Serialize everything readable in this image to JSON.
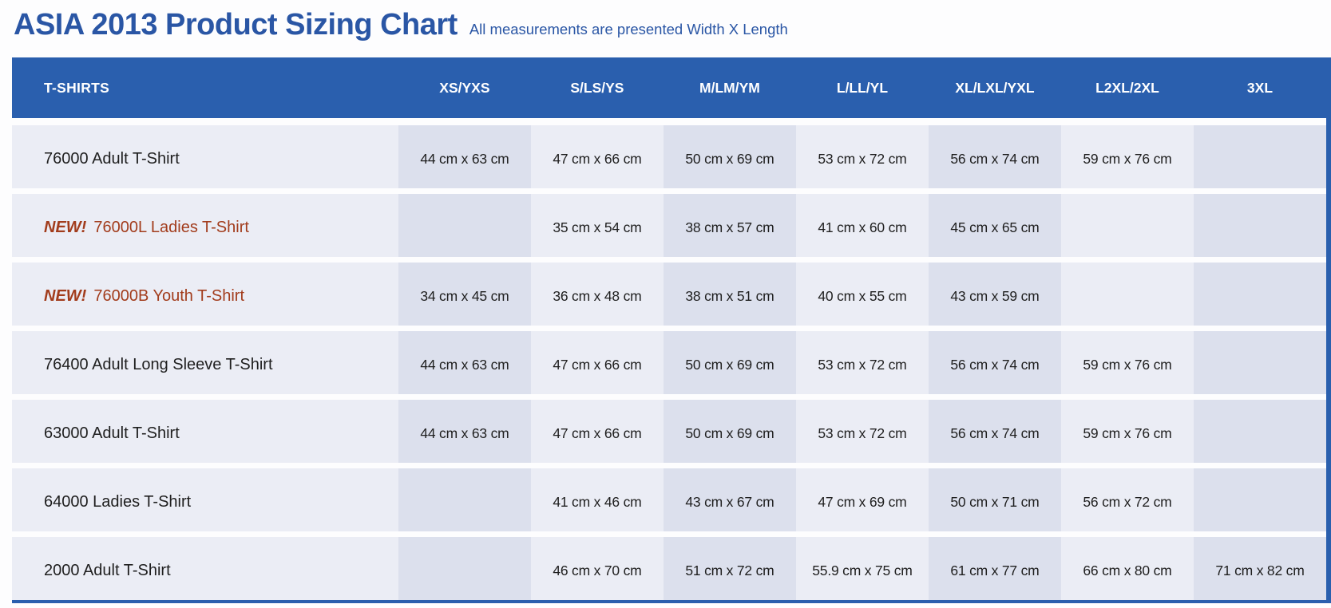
{
  "page": {
    "title": "ASIA 2013 Product Sizing Chart",
    "subtitle": "All measurements are presented Width X Length"
  },
  "colors": {
    "title_color": "#2a56a5",
    "header_bg": "#2a5fae",
    "row_bg": "#ebedf5",
    "cell_alt_bg": "#dce0ed",
    "new_color": "#a23c1c",
    "text_color": "#1f1f1f",
    "border_blue": "#2a5fae"
  },
  "table": {
    "columns": [
      "T-SHIRTS",
      "XS/YXS",
      "S/LS/YS",
      "M/LM/YM",
      "L/LL/YL",
      "XL/LXL/YXL",
      "L2XL/2XL",
      "3XL"
    ],
    "rows": [
      {
        "name": "76000 Adult T-Shirt",
        "sizes": [
          "44 cm x 63 cm",
          "47 cm x 66 cm",
          "50 cm x 69 cm",
          "53 cm x 72 cm",
          "56 cm x 74 cm",
          "59 cm x 76 cm",
          ""
        ]
      },
      {
        "new_label": "NEW!",
        "name": "76000L Ladies T-Shirt",
        "sizes": [
          "",
          "35 cm x 54 cm",
          "38 cm x 57 cm",
          "41 cm x 60 cm",
          "45 cm x 65 cm",
          "",
          ""
        ]
      },
      {
        "new_label": "NEW!",
        "name": "76000B Youth T-Shirt",
        "sizes": [
          "34 cm x 45 cm",
          "36 cm x 48 cm",
          "38 cm x 51 cm",
          "40 cm x 55 cm",
          "43 cm x 59 cm",
          "",
          ""
        ]
      },
      {
        "name": "76400 Adult Long Sleeve T-Shirt",
        "sizes": [
          "44 cm x 63 cm",
          "47 cm x 66 cm",
          "50 cm x 69 cm",
          "53 cm x 72 cm",
          "56 cm x 74 cm",
          "59 cm x 76 cm",
          ""
        ]
      },
      {
        "name": "63000 Adult T-Shirt",
        "sizes": [
          "44 cm x 63 cm",
          "47 cm x 66 cm",
          "50 cm x 69 cm",
          "53 cm x 72 cm",
          "56 cm x 74 cm",
          "59 cm x 76 cm",
          ""
        ]
      },
      {
        "name": "64000 Ladies T-Shirt",
        "sizes": [
          "",
          "41 cm x 46 cm",
          "43 cm x 67 cm",
          "47 cm x 69 cm",
          "50 cm x 71 cm",
          "56 cm x 72 cm",
          ""
        ]
      },
      {
        "name": "2000 Adult T-Shirt",
        "sizes": [
          "",
          "46 cm x 70 cm",
          "51 cm x 72 cm",
          "55.9 cm x 75 cm",
          "61 cm x 77 cm",
          "66 cm x 80 cm",
          "71 cm x 82 cm"
        ]
      }
    ]
  }
}
